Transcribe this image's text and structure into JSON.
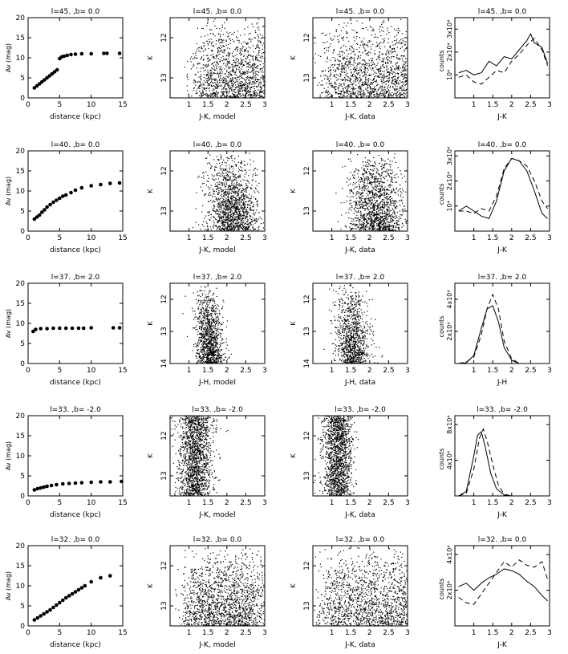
{
  "figure": {
    "rows": [
      {
        "title": "l=45. ,b=  0.0"
      },
      {
        "title": "l=40. ,b=  0.0"
      },
      {
        "title": "l=37. ,b=  2.0"
      },
      {
        "title": "l=33. ,b= -2.0"
      },
      {
        "title": "l=32. ,b=  0.0"
      }
    ]
  },
  "chart_data": [
    {
      "type": "scatter",
      "row": 0,
      "panel": "extinction",
      "title": "l=45. ,b=  0.0",
      "xlabel": "distance (kpc)",
      "ylabel": "Av (mag)",
      "xlim": [
        0,
        15
      ],
      "ylim": [
        0,
        20
      ],
      "xticks": [
        0,
        5,
        10,
        15
      ],
      "yticks": [
        0,
        5,
        10,
        15,
        20
      ],
      "x": [
        1.0,
        1.4,
        1.8,
        2.2,
        2.6,
        3.0,
        3.4,
        3.8,
        4.2,
        4.6,
        5.0,
        5.3,
        5.7,
        6.2,
        6.8,
        7.5,
        8.5,
        10.0,
        12.0,
        12.5,
        14.5
      ],
      "y": [
        2.5,
        3.0,
        3.5,
        4.0,
        4.5,
        5.0,
        5.5,
        6.0,
        6.5,
        7.0,
        9.8,
        10.2,
        10.4,
        10.6,
        10.8,
        10.9,
        11.0,
        11.0,
        11.1,
        11.1,
        11.1
      ]
    },
    {
      "type": "scatter",
      "row": 0,
      "panel": "cmd-model",
      "xlabel": "J-K, model",
      "ylabel": "K",
      "xlim": [
        0.5,
        3
      ],
      "ylim": [
        13.5,
        11.5
      ],
      "xticks": [
        1,
        1.5,
        2,
        2.5,
        3
      ],
      "xticklabels": [
        "1",
        "1.5",
        "2",
        "2.5",
        "3"
      ],
      "yticks": [
        12,
        13
      ],
      "density": {
        "type": "broad",
        "center": 2.3,
        "spread": 0.55,
        "count": 1500,
        "faint_weighted": true
      }
    },
    {
      "type": "scatter",
      "row": 0,
      "panel": "cmd-data",
      "xlabel": "J-K, data",
      "ylabel": "K",
      "xlim": [
        0.5,
        3
      ],
      "ylim": [
        13.5,
        11.5
      ],
      "xticks": [
        1,
        1.5,
        2,
        2.5,
        3
      ],
      "xticklabels": [
        "1",
        "1.5",
        "2",
        "2.5",
        "3"
      ],
      "yticks": [
        12,
        13
      ],
      "density": {
        "type": "broad",
        "center": 2.1,
        "spread": 0.6,
        "count": 1500,
        "faint_weighted": true
      }
    },
    {
      "type": "line",
      "row": 0,
      "panel": "histogram",
      "xlabel": "J-K",
      "ylabel": "counts",
      "xlim": [
        0.5,
        3
      ],
      "ylim": [
        0,
        35000
      ],
      "xticks": [
        1,
        1.5,
        2,
        2.5,
        3
      ],
      "xticklabels": [
        "1",
        "1.5",
        "2",
        "2.5",
        "3"
      ],
      "ytick_labels": [
        {
          "v": 10000,
          "t": "10⁴"
        },
        {
          "v": 20000,
          "t": "2x10⁴"
        },
        {
          "v": 30000,
          "t": "3x10⁴"
        }
      ],
      "series": [
        {
          "style": "solid",
          "x": [
            0.6,
            0.8,
            1.0,
            1.2,
            1.4,
            1.6,
            1.8,
            2.0,
            2.2,
            2.4,
            2.5,
            2.6,
            2.8,
            2.95
          ],
          "y": [
            11000,
            12000,
            10000,
            11000,
            16000,
            14000,
            18000,
            17000,
            21000,
            25000,
            28000,
            24000,
            22000,
            15000
          ]
        },
        {
          "style": "dashed",
          "x": [
            0.6,
            0.8,
            1.0,
            1.2,
            1.4,
            1.6,
            1.8,
            2.0,
            2.2,
            2.4,
            2.6,
            2.8,
            2.95
          ],
          "y": [
            9000,
            10000,
            7000,
            6000,
            9000,
            12000,
            11000,
            16000,
            19000,
            23000,
            26000,
            21000,
            14000
          ]
        }
      ]
    },
    {
      "type": "scatter",
      "row": 1,
      "panel": "extinction",
      "title": "l=40. ,b=  0.0",
      "xlabel": "distance (kpc)",
      "ylabel": "Av (mag)",
      "xlim": [
        0,
        15
      ],
      "ylim": [
        0,
        20
      ],
      "xticks": [
        0,
        5,
        10,
        15
      ],
      "yticks": [
        0,
        5,
        10,
        15,
        20
      ],
      "x": [
        1.0,
        1.4,
        1.8,
        2.2,
        2.6,
        3.0,
        3.5,
        4.0,
        4.5,
        5.0,
        5.5,
        6.0,
        6.8,
        7.5,
        8.5,
        10.0,
        11.5,
        13.0,
        14.5
      ],
      "y": [
        3.0,
        3.5,
        4.0,
        4.7,
        5.3,
        6.0,
        6.6,
        7.2,
        7.7,
        8.2,
        8.7,
        9.0,
        9.6,
        10.2,
        10.8,
        11.3,
        11.6,
        11.9,
        12.0
      ]
    },
    {
      "type": "scatter",
      "row": 1,
      "panel": "cmd-model",
      "xlabel": "J-K, model",
      "ylabel": "K",
      "xlim": [
        0.5,
        3
      ],
      "ylim": [
        13.5,
        11.5
      ],
      "xticks": [
        1,
        1.5,
        2,
        2.5,
        3
      ],
      "xticklabels": [
        "1",
        "1.5",
        "2",
        "2.5",
        "3"
      ],
      "yticks": [
        12,
        13
      ],
      "density": {
        "type": "ridge",
        "center": 2.05,
        "spread": 0.35,
        "count": 1400,
        "faint_weighted": true
      }
    },
    {
      "type": "scatter",
      "row": 1,
      "panel": "cmd-data",
      "xlabel": "J-K, data",
      "ylabel": "K",
      "xlim": [
        0.5,
        3
      ],
      "ylim": [
        13.5,
        11.5
      ],
      "xticks": [
        1,
        1.5,
        2,
        2.5,
        3
      ],
      "xticklabels": [
        "1",
        "1.5",
        "2",
        "2.5",
        "3"
      ],
      "yticks": [
        12,
        13
      ],
      "density": {
        "type": "ridge",
        "center": 2.1,
        "spread": 0.35,
        "count": 1400,
        "faint_weighted": true
      }
    },
    {
      "type": "line",
      "row": 1,
      "panel": "histogram",
      "xlabel": "J-K",
      "ylabel": "counts",
      "xlim": [
        0.5,
        3
      ],
      "ylim": [
        0,
        32000
      ],
      "xticks": [
        1,
        1.5,
        2,
        2.5,
        3
      ],
      "xticklabels": [
        "1",
        "1.5",
        "2",
        "2.5",
        "3"
      ],
      "ytick_labels": [
        {
          "v": 10000,
          "t": "10⁴"
        },
        {
          "v": 20000,
          "t": "2x10⁴"
        },
        {
          "v": 30000,
          "t": "3x10⁴"
        }
      ],
      "series": [
        {
          "style": "solid",
          "x": [
            0.6,
            0.8,
            1.0,
            1.2,
            1.4,
            1.6,
            1.8,
            2.0,
            2.2,
            2.4,
            2.6,
            2.8,
            2.95
          ],
          "y": [
            8000,
            10000,
            8000,
            6000,
            5000,
            12000,
            24000,
            29000,
            28000,
            24000,
            16000,
            7000,
            5000
          ]
        },
        {
          "style": "dashed",
          "x": [
            0.6,
            0.8,
            1.0,
            1.2,
            1.4,
            1.6,
            1.8,
            2.0,
            2.2,
            2.4,
            2.6,
            2.8,
            2.95
          ],
          "y": [
            8000,
            8000,
            7000,
            9000,
            8000,
            14000,
            25000,
            29000,
            28000,
            26000,
            20000,
            12000,
            9000
          ]
        }
      ]
    },
    {
      "type": "scatter",
      "row": 2,
      "panel": "extinction",
      "title": "l=37. ,b=  2.0",
      "xlabel": "distance (kpc)",
      "ylabel": "Av (mag)",
      "xlim": [
        0,
        15
      ],
      "ylim": [
        0,
        20
      ],
      "xticks": [
        0,
        5,
        10,
        15
      ],
      "yticks": [
        0,
        5,
        10,
        15,
        20
      ],
      "x": [
        0.8,
        1.2,
        2.0,
        3.0,
        4.0,
        5.0,
        6.0,
        7.0,
        8.0,
        8.8,
        10.0,
        13.5,
        14.5
      ],
      "y": [
        8.0,
        8.5,
        8.7,
        8.7,
        8.8,
        8.8,
        8.8,
        8.8,
        8.8,
        8.8,
        8.9,
        8.9,
        8.9
      ]
    },
    {
      "type": "scatter",
      "row": 2,
      "panel": "cmd-model",
      "xlabel": "J-H, model",
      "ylabel": "K",
      "xlim": [
        0.5,
        3
      ],
      "ylim": [
        14,
        11.5
      ],
      "xticks": [
        1,
        1.5,
        2,
        2.5,
        3
      ],
      "xticklabels": [
        "1",
        "1.5",
        "2",
        "2.5",
        "3"
      ],
      "yticks": [
        12,
        13,
        14
      ],
      "density": {
        "type": "ridge",
        "center": 1.45,
        "spread": 0.18,
        "count": 1100,
        "faint_weighted": true
      }
    },
    {
      "type": "scatter",
      "row": 2,
      "panel": "cmd-data",
      "xlabel": "J-H, data",
      "ylabel": "K",
      "xlim": [
        0.5,
        3
      ],
      "ylim": [
        14,
        11.5
      ],
      "xticks": [
        1,
        1.5,
        2,
        2.5,
        3
      ],
      "xticklabels": [
        "1",
        "1.5",
        "2",
        "2.5",
        "3"
      ],
      "yticks": [
        12,
        13,
        14
      ],
      "density": {
        "type": "ridge",
        "center": 1.45,
        "spread": 0.22,
        "count": 1000,
        "faint_weighted": true
      }
    },
    {
      "type": "line",
      "row": 2,
      "panel": "histogram",
      "xlabel": "J-H",
      "ylabel": "counts",
      "xlim": [
        0.5,
        3
      ],
      "ylim": [
        0,
        50000
      ],
      "xticks": [
        1,
        1.5,
        2,
        2.5,
        3
      ],
      "xticklabels": [
        "1",
        "1.5",
        "2",
        "2.5",
        "3"
      ],
      "ytick_labels": [
        {
          "v": 20000,
          "t": "2x10⁴"
        },
        {
          "v": 40000,
          "t": "4x10⁴"
        }
      ],
      "series": [
        {
          "style": "solid",
          "x": [
            0.6,
            0.8,
            1.0,
            1.2,
            1.35,
            1.5,
            1.65,
            1.8,
            2.0,
            2.2,
            2.5,
            2.95
          ],
          "y": [
            0,
            500,
            5000,
            22000,
            34000,
            36000,
            26000,
            10000,
            2000,
            0,
            0,
            0
          ]
        },
        {
          "style": "dashed",
          "x": [
            0.6,
            0.8,
            1.0,
            1.2,
            1.35,
            1.5,
            1.65,
            1.8,
            2.0,
            2.2,
            2.5,
            2.95
          ],
          "y": [
            0,
            1000,
            4000,
            18000,
            34000,
            43000,
            34000,
            14000,
            3000,
            0,
            0,
            0
          ]
        }
      ]
    },
    {
      "type": "scatter",
      "row": 3,
      "panel": "extinction",
      "title": "l=33. ,b= -2.0",
      "xlabel": "distance (kpc)",
      "ylabel": "Av (mag)",
      "xlim": [
        0,
        15
      ],
      "ylim": [
        0,
        20
      ],
      "xticks": [
        0,
        5,
        10,
        15
      ],
      "yticks": [
        0,
        5,
        10,
        15,
        20
      ],
      "x": [
        1.0,
        1.5,
        2.0,
        2.5,
        3.0,
        3.7,
        4.5,
        5.5,
        6.5,
        7.5,
        8.5,
        10.0,
        11.5,
        13.0,
        14.8
      ],
      "y": [
        1.5,
        1.8,
        2.0,
        2.2,
        2.4,
        2.6,
        2.8,
        3.0,
        3.1,
        3.2,
        3.3,
        3.4,
        3.5,
        3.5,
        3.6
      ]
    },
    {
      "type": "scatter",
      "row": 3,
      "panel": "cmd-model",
      "xlabel": "J-K, model",
      "ylabel": "K",
      "xlim": [
        0.5,
        3
      ],
      "ylim": [
        13.5,
        11.5
      ],
      "xticks": [
        1,
        1.5,
        2,
        2.5,
        3
      ],
      "xticklabels": [
        "1",
        "1.5",
        "2",
        "2.5",
        "3"
      ],
      "yticks": [
        12,
        13
      ],
      "density": {
        "type": "ridge",
        "center": 1.15,
        "spread": 0.22,
        "count": 1500,
        "faint_weighted": false
      }
    },
    {
      "type": "scatter",
      "row": 3,
      "panel": "cmd-data",
      "xlabel": "J-K, data",
      "ylabel": "K",
      "xlim": [
        0.5,
        3
      ],
      "ylim": [
        13.5,
        11.5
      ],
      "xticks": [
        1,
        1.5,
        2,
        2.5,
        3
      ],
      "xticklabels": [
        "1",
        "1.5",
        "2",
        "2.5",
        "3"
      ],
      "yticks": [
        12,
        13
      ],
      "density": {
        "type": "ridge",
        "center": 1.15,
        "spread": 0.2,
        "count": 1400,
        "faint_weighted": false
      }
    },
    {
      "type": "line",
      "row": 3,
      "panel": "histogram",
      "xlabel": "J-K",
      "ylabel": "counts",
      "xlim": [
        0.5,
        3
      ],
      "ylim": [
        0,
        90000
      ],
      "xticks": [
        1,
        1.5,
        2,
        2.5,
        3
      ],
      "xticklabels": [
        "1",
        "1.5",
        "2",
        "2.5",
        "3"
      ],
      "ytick_labels": [
        {
          "v": 40000,
          "t": "4x10⁴"
        },
        {
          "v": 80000,
          "t": "8x10⁴"
        }
      ],
      "series": [
        {
          "style": "solid",
          "x": [
            0.6,
            0.8,
            1.0,
            1.1,
            1.2,
            1.3,
            1.45,
            1.6,
            1.8,
            2.0,
            2.5,
            2.95
          ],
          "y": [
            0,
            5000,
            45000,
            68000,
            72000,
            55000,
            25000,
            8000,
            1000,
            0,
            0,
            0
          ]
        },
        {
          "style": "dashed",
          "x": [
            0.6,
            0.8,
            1.0,
            1.15,
            1.25,
            1.35,
            1.5,
            1.65,
            1.8,
            2.0,
            2.5,
            2.95
          ],
          "y": [
            0,
            3000,
            30000,
            65000,
            75000,
            62000,
            35000,
            12000,
            2000,
            0,
            0,
            0
          ]
        }
      ]
    },
    {
      "type": "scatter",
      "row": 4,
      "panel": "extinction",
      "title": "l=32. ,b=  0.0",
      "xlabel": "distance (kpc)",
      "ylabel": "Av (mag)",
      "xlim": [
        0,
        15
      ],
      "ylim": [
        0,
        20
      ],
      "xticks": [
        0,
        5,
        10,
        15
      ],
      "yticks": [
        0,
        5,
        10,
        15,
        20
      ],
      "x": [
        1.0,
        1.5,
        2.0,
        2.5,
        3.0,
        3.5,
        4.0,
        4.5,
        5.0,
        5.5,
        6.0,
        6.5,
        7.0,
        7.5,
        8.0,
        8.5,
        9.0,
        10.0,
        11.5,
        13.0
      ],
      "y": [
        1.5,
        2.0,
        2.5,
        3.0,
        3.5,
        4.0,
        4.6,
        5.2,
        5.8,
        6.4,
        7.0,
        7.5,
        8.0,
        8.5,
        9.0,
        9.5,
        10.0,
        11.0,
        12.0,
        12.5
      ]
    },
    {
      "type": "scatter",
      "row": 4,
      "panel": "cmd-model",
      "xlabel": "J-K, model",
      "ylabel": "K",
      "xlim": [
        0.5,
        3
      ],
      "ylim": [
        13.5,
        11.5
      ],
      "xticks": [
        1,
        1.5,
        2,
        2.5,
        3
      ],
      "xticklabels": [
        "1",
        "1.5",
        "2",
        "2.5",
        "3"
      ],
      "yticks": [
        12,
        13
      ],
      "density": {
        "type": "broad",
        "center": 1.9,
        "spread": 0.45,
        "count": 1500,
        "faint_weighted": true
      }
    },
    {
      "type": "scatter",
      "row": 4,
      "panel": "cmd-data",
      "xlabel": "J-K, data",
      "ylabel": "K",
      "xlim": [
        0.5,
        3
      ],
      "ylim": [
        13.5,
        11.5
      ],
      "xticks": [
        1,
        1.5,
        2,
        2.5,
        3
      ],
      "xticklabels": [
        "1",
        "1.5",
        "2",
        "2.5",
        "3"
      ],
      "yticks": [
        12,
        13
      ],
      "density": {
        "type": "broad",
        "center": 2.0,
        "spread": 0.6,
        "count": 1500,
        "faint_weighted": true
      }
    },
    {
      "type": "line",
      "row": 4,
      "panel": "histogram",
      "xlabel": "J-K",
      "ylabel": "counts",
      "xlim": [
        0.5,
        3
      ],
      "ylim": [
        0,
        45000
      ],
      "xticks": [
        1,
        1.5,
        2,
        2.5,
        3
      ],
      "xticklabels": [
        "1",
        "1.5",
        "2",
        "2.5",
        "3"
      ],
      "ytick_labels": [
        {
          "v": 20000,
          "t": "2x10⁴"
        },
        {
          "v": 40000,
          "t": "4x10⁴"
        }
      ],
      "series": [
        {
          "style": "solid",
          "x": [
            0.6,
            0.8,
            1.0,
            1.2,
            1.4,
            1.6,
            1.8,
            2.0,
            2.2,
            2.4,
            2.6,
            2.8,
            2.95
          ],
          "y": [
            22000,
            24000,
            20000,
            24000,
            27000,
            29000,
            32000,
            31000,
            29000,
            25000,
            22000,
            17000,
            14000
          ]
        },
        {
          "style": "dashed",
          "x": [
            0.6,
            0.8,
            1.0,
            1.2,
            1.4,
            1.6,
            1.8,
            2.0,
            2.2,
            2.4,
            2.6,
            2.8,
            2.95
          ],
          "y": [
            16000,
            13000,
            12000,
            18000,
            24000,
            30000,
            36000,
            33000,
            37000,
            34000,
            33000,
            36000,
            26000
          ]
        }
      ]
    }
  ]
}
